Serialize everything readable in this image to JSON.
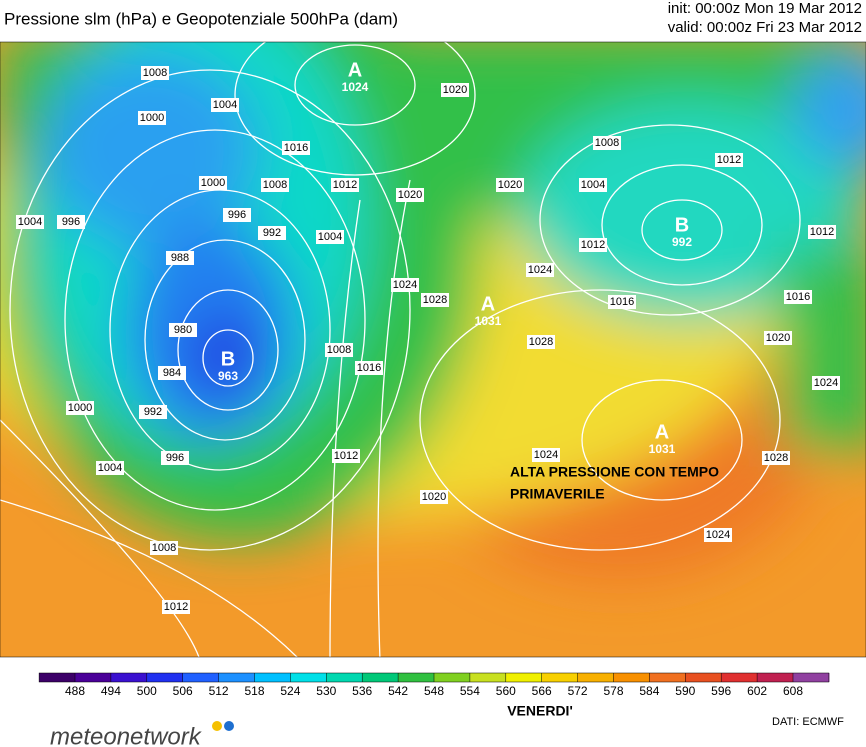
{
  "header": {
    "title": "Pressione slm (hPa) e Geopotenziale 500hPa (dam)",
    "init": "init: 00:00z Mon 19 Mar 2012",
    "valid": "valid: 00:00z Fri 23 Mar 2012"
  },
  "map": {
    "centers": [
      {
        "letter": "A",
        "value": 1024
      },
      {
        "letter": "B",
        "value": 963
      },
      {
        "letter": "A",
        "value": 1031
      },
      {
        "letter": "B",
        "value": 992
      },
      {
        "letter": "A",
        "value": 1031
      }
    ],
    "isobar_labels": [
      1008,
      1000,
      1004,
      1000,
      1008,
      1016,
      1012,
      996,
      1004,
      996,
      992,
      988,
      1004,
      1020,
      1020,
      1020,
      1024,
      1028,
      1024,
      1008,
      1004,
      1012,
      1012,
      1012,
      1016,
      1016,
      1020,
      1024,
      980,
      984,
      1008,
      1016,
      992,
      996,
      1000,
      1004,
      1012,
      1020,
      1024,
      1028,
      1028,
      1024,
      1008,
      1012
    ],
    "annotation": [
      "ALTA PRESSIONE CON TEMPO",
      "PRIMAVERILE"
    ]
  },
  "colorbar": {
    "ticks": [
      488,
      494,
      500,
      506,
      512,
      518,
      524,
      530,
      536,
      542,
      548,
      554,
      560,
      566,
      572,
      578,
      584,
      590,
      596,
      602,
      608
    ],
    "colors": [
      "#3c0068",
      "#4a0098",
      "#3a10d0",
      "#2030f0",
      "#2060ff",
      "#1c90ff",
      "#00c0ff",
      "#00e0e8",
      "#00d8b0",
      "#00c878",
      "#30c040",
      "#80d020",
      "#c8e020",
      "#f0f000",
      "#f8d000",
      "#f8b000",
      "#f89000",
      "#f07020",
      "#e85020",
      "#e03030",
      "#c02050",
      "#9040a0"
    ],
    "label": "VENERDI'"
  },
  "footer": {
    "brand": "meteonetwork",
    "source": "DATI:  ECMWF"
  }
}
